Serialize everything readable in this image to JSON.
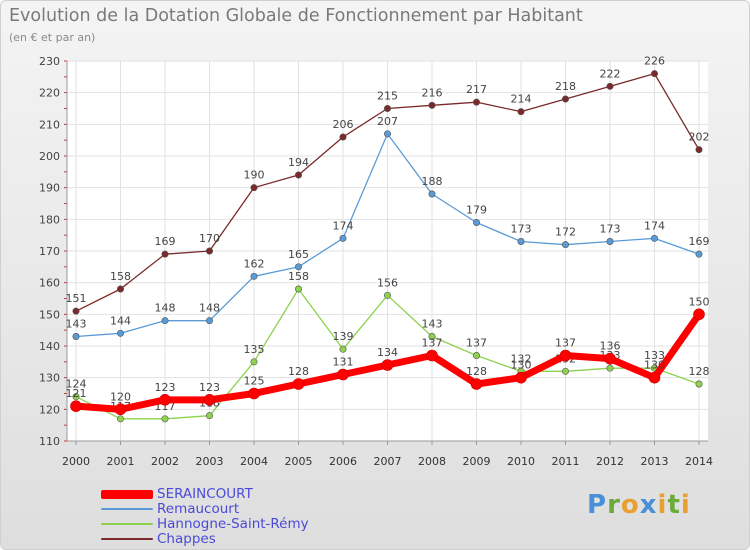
{
  "title": "Evolution de la Dotation Globale de Fonctionnement par Habitant",
  "subtitle": "(en € et par an)",
  "logo": {
    "text": "Proxiti",
    "colors": [
      "#4a90d9",
      "#6aab3a",
      "#e8a030",
      "#4a90d9",
      "#e8a030",
      "#6aab3a",
      "#e8a030"
    ]
  },
  "chart_data": {
    "type": "line",
    "x": [
      "2000",
      "2001",
      "2002",
      "2003",
      "2004",
      "2005",
      "2006",
      "2007",
      "2008",
      "2009",
      "2010",
      "2011",
      "2012",
      "2013",
      "2014"
    ],
    "ylim": [
      110,
      230
    ],
    "yticks": [
      110,
      120,
      130,
      140,
      150,
      160,
      170,
      180,
      190,
      200,
      210,
      220,
      230
    ],
    "grid": true,
    "legend_position": "bottom-left",
    "series": [
      {
        "name": "Chappes",
        "color": "#7a2a2a",
        "values": [
          151,
          158,
          169,
          170,
          190,
          194,
          206,
          215,
          216,
          217,
          214,
          218,
          222,
          226,
          202
        ]
      },
      {
        "name": "Remaucourt",
        "color": "#5a9bd5",
        "values": [
          143,
          144,
          148,
          148,
          162,
          165,
          174,
          207,
          188,
          179,
          173,
          172,
          173,
          174,
          169
        ]
      },
      {
        "name": "Hannogne-Saint-Rémy",
        "color": "#8ed14f",
        "values": [
          124,
          117,
          117,
          118,
          135,
          158,
          139,
          156,
          143,
          137,
          132,
          132,
          133,
          133,
          128
        ]
      },
      {
        "name": "SERAINCOURT",
        "color": "#ff0000",
        "values": [
          121,
          120,
          123,
          123,
          125,
          128,
          131,
          134,
          137,
          128,
          130,
          137,
          136,
          130,
          150
        ]
      }
    ],
    "legend_order": [
      "SERAINCOURT",
      "Remaucourt",
      "Hannogne-Saint-Rémy",
      "Chappes"
    ]
  }
}
